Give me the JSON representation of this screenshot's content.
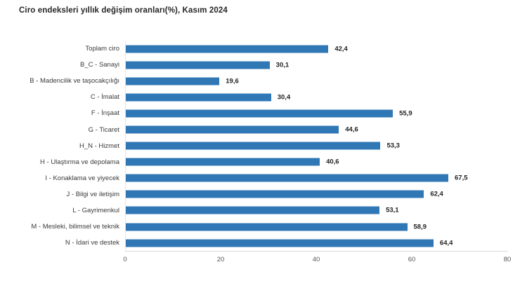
{
  "title": "Ciro endeksleri yıllık değişim oranları(%), Kasım 2024",
  "chart_data": {
    "type": "bar",
    "orientation": "horizontal",
    "title": "Ciro endeksleri yıllık değişim oranları(%), Kasım 2024",
    "categories": [
      "Toplam ciro",
      "B_C - Sanayi",
      "B - Madencilik ve taşocakçılığı",
      "C - İmalat",
      "F - İnşaat",
      "G - Ticaret",
      "H_N - Hizmet",
      "H - Ulaştırma ve depolama",
      "I - Konaklama ve yiyecek",
      "J - Bilgi ve iletişim",
      "L - Gayrimenkul",
      "M - Mesleki, bilimsel ve teknik",
      "N - İdari ve destek"
    ],
    "values": [
      42.4,
      30.1,
      19.6,
      30.4,
      55.9,
      44.6,
      53.3,
      40.6,
      67.5,
      62.4,
      53.1,
      58.9,
      64.4
    ],
    "value_labels": [
      "42,4",
      "30,1",
      "19,6",
      "30,4",
      "55,9",
      "44,6",
      "53,3",
      "40,6",
      "67,5",
      "62,4",
      "53,1",
      "58,9",
      "64,4"
    ],
    "xlabel": "",
    "ylabel": "",
    "xlim": [
      0,
      80
    ],
    "xticks": [
      0,
      20,
      40,
      60,
      80
    ],
    "xtick_labels": [
      "0",
      "20",
      "40",
      "60",
      "80"
    ],
    "grid": false,
    "legend": false,
    "bar_color": "#3077b5",
    "value_label_position": "outside-end"
  }
}
